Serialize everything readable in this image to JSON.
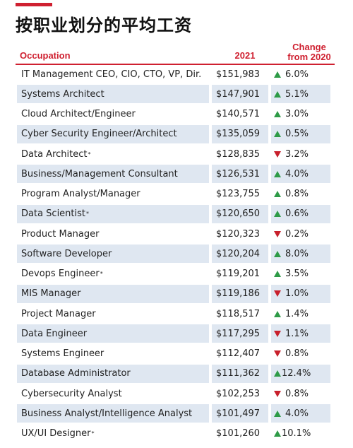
{
  "title": "按职业划分的平均工资",
  "colors": {
    "accent": "#cf2030",
    "up": "#2e9b47",
    "down": "#c8202c",
    "row_shade": "#dfe7f1"
  },
  "columns": {
    "occupation": "Occupation",
    "year": "2021",
    "change_line1": "Change",
    "change_line2": "from 2020"
  },
  "rows": [
    {
      "occupation": "IT Management CEO, CIO, CTO, VP, Dir.",
      "note": "",
      "salary": "$151,983",
      "direction": "up",
      "change": "6.0%"
    },
    {
      "occupation": "Systems Architect",
      "note": "",
      "salary": "$147,901",
      "direction": "up",
      "change": "5.1%"
    },
    {
      "occupation": "Cloud Architect/Engineer",
      "note": "",
      "salary": "$140,571",
      "direction": "up",
      "change": "3.0%"
    },
    {
      "occupation": "Cyber Security Engineer/Architect",
      "note": "",
      "salary": "$135,059",
      "direction": "up",
      "change": "0.5%"
    },
    {
      "occupation": "Data Architect",
      "note": "*",
      "salary": "$128,835",
      "direction": "down",
      "change": "3.2%"
    },
    {
      "occupation": "Business/Management Consultant",
      "note": "",
      "salary": "$126,531",
      "direction": "up",
      "change": "4.0%"
    },
    {
      "occupation": "Program Analyst/Manager",
      "note": "",
      "salary": "$123,755",
      "direction": "up",
      "change": "0.8%"
    },
    {
      "occupation": "Data Scientist",
      "note": "*",
      "salary": "$120,650",
      "direction": "up",
      "change": "0.6%"
    },
    {
      "occupation": "Product Manager",
      "note": "",
      "salary": "$120,323",
      "direction": "down",
      "change": "0.2%"
    },
    {
      "occupation": "Software Developer",
      "note": "",
      "salary": "$120,204",
      "direction": "up",
      "change": "8.0%"
    },
    {
      "occupation": "Devops Engineer",
      "note": "*",
      "salary": "$119,201",
      "direction": "up",
      "change": "3.5%"
    },
    {
      "occupation": "MIS Manager",
      "note": "",
      "salary": "$119,186",
      "direction": "down",
      "change": "1.0%"
    },
    {
      "occupation": "Project Manager",
      "note": "",
      "salary": "$118,517",
      "direction": "up",
      "change": "1.4%"
    },
    {
      "occupation": "Data Engineer",
      "note": "",
      "salary": "$117,295",
      "direction": "down",
      "change": "1.1%"
    },
    {
      "occupation": "Systems Engineer",
      "note": "",
      "salary": "$112,407",
      "direction": "down",
      "change": "0.8%"
    },
    {
      "occupation": "Database Administrator",
      "note": "",
      "salary": "$111,362",
      "direction": "up",
      "change": "12.4%"
    },
    {
      "occupation": "Cybersecurity Analyst",
      "note": "",
      "salary": "$102,253",
      "direction": "down",
      "change": "0.8%"
    },
    {
      "occupation": "Business Analyst/Intelligence Analyst",
      "note": "",
      "salary": "$101,497",
      "direction": "up",
      "change": "4.0%"
    },
    {
      "occupation": "UX/UI Designer",
      "note": "*",
      "salary": "$101,260",
      "direction": "up",
      "change": "10.1%"
    }
  ]
}
